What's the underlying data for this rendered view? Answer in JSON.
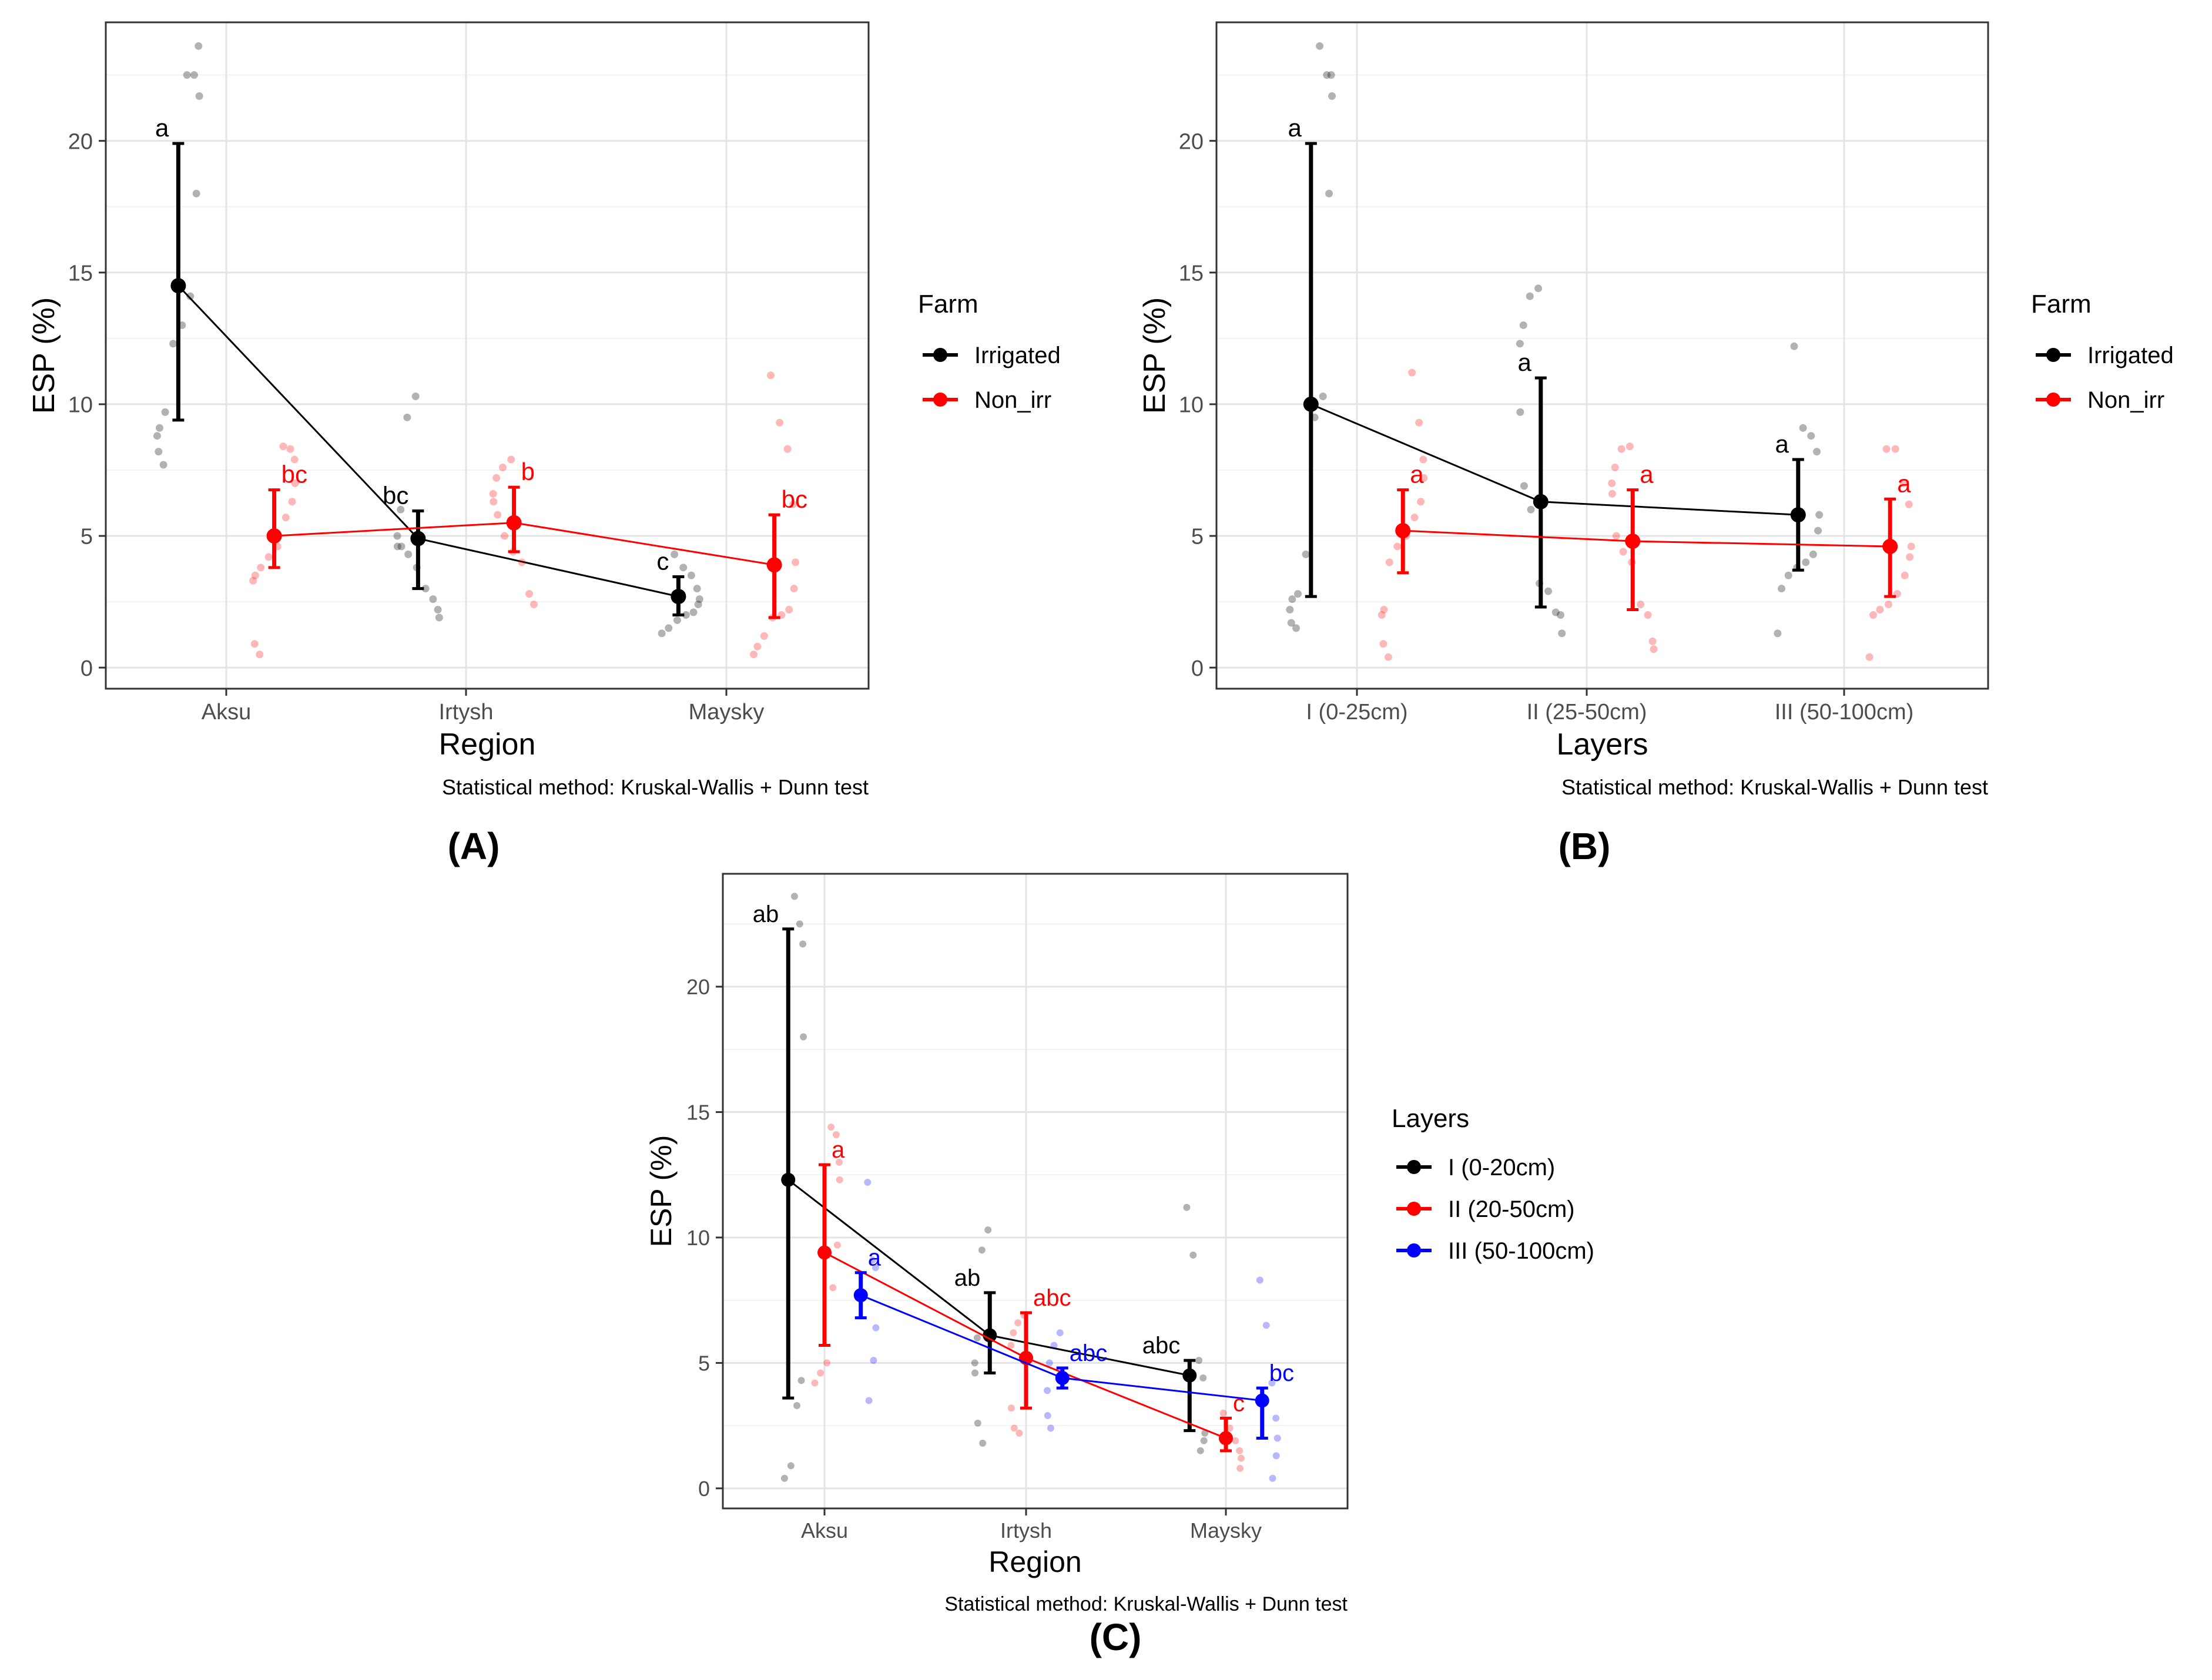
{
  "panel_captions": [
    "(A)",
    "(B)",
    "(C)"
  ],
  "chart_data": [
    {
      "panel": "A",
      "type": "scatter",
      "title": "",
      "xlabel": "Region",
      "ylabel": "ESP (%)",
      "caption": "Statistical method: Kruskal-Wallis + Dunn test",
      "categories": [
        "Aksu",
        "Irtysh",
        "Maysky"
      ],
      "ylim": [
        -0.8,
        24.5
      ],
      "yticks": [
        0,
        5,
        10,
        15,
        20
      ],
      "grid": true,
      "legend_title": "Farm",
      "series": [
        {
          "name": "Irrigated",
          "color": "#000000",
          "offset": -0.2,
          "mean": [
            14.5,
            4.9,
            2.7
          ],
          "lower": [
            9.4,
            3.0,
            2.0
          ],
          "upper": [
            19.9,
            5.95,
            3.45
          ],
          "letters": [
            "a",
            "bc",
            "c"
          ],
          "letter_side": "left",
          "points": [
            [
              22.5,
              22.5,
              23.6,
              21.7,
              18.0,
              14.1,
              13.0,
              12.3,
              9.7,
              9.1,
              8.8,
              8.2,
              7.7
            ],
            [
              10.3,
              9.5,
              6.0,
              5.0,
              4.6,
              4.6,
              4.3,
              3.8,
              3.0,
              2.6,
              2.2,
              1.9
            ],
            [
              4.3,
              3.8,
              3.5,
              3.0,
              2.6,
              2.4,
              2.1,
              2.0,
              1.8,
              1.5,
              1.3
            ]
          ]
        },
        {
          "name": "Non_irr",
          "color": "#ff0000",
          "offset": 0.2,
          "mean": [
            5.0,
            5.5,
            3.9
          ],
          "lower": [
            3.8,
            4.4,
            1.9
          ],
          "upper": [
            6.75,
            6.85,
            5.8
          ],
          "letters": [
            "bc",
            "b",
            "bc"
          ],
          "letter_side": "right",
          "points": [
            [
              8.4,
              8.3,
              7.9,
              7.0,
              6.3,
              5.7,
              4.6,
              4.2,
              3.8,
              3.5,
              3.3,
              0.9,
              0.5
            ],
            [
              7.9,
              7.6,
              7.2,
              6.6,
              6.3,
              5.8,
              5.0,
              4.4,
              4.0,
              2.8,
              2.4
            ],
            [
              11.1,
              9.3,
              8.3,
              6.2,
              4.0,
              3.0,
              2.2,
              2.0,
              1.9,
              1.2,
              0.8,
              0.5
            ]
          ]
        }
      ]
    },
    {
      "panel": "B",
      "type": "scatter",
      "title": "",
      "xlabel": "Layers",
      "ylabel": "ESP (%)",
      "caption": "Statistical method: Kruskal-Wallis + Dunn test",
      "categories": [
        "I (0-25cm)",
        "II (25-50cm)",
        "III (50-100cm)"
      ],
      "ylim": [
        -0.8,
        24.5
      ],
      "yticks": [
        0,
        5,
        10,
        15,
        20
      ],
      "grid": true,
      "legend_title": "Farm",
      "series": [
        {
          "name": "Irrigated",
          "color": "#000000",
          "offset": -0.2,
          "mean": [
            10.0,
            6.3,
            5.8
          ],
          "lower": [
            2.7,
            2.3,
            3.7
          ],
          "upper": [
            19.9,
            11.0,
            7.9
          ],
          "letters": [
            "a",
            "a",
            "a"
          ],
          "letter_side": "left",
          "points": [
            [
              23.6,
              22.5,
              22.5,
              21.7,
              18.0,
              10.3,
              9.5,
              4.3,
              2.8,
              2.6,
              2.2,
              1.7,
              1.5
            ],
            [
              14.4,
              14.1,
              13.0,
              12.3,
              9.7,
              6.9,
              6.0,
              3.2,
              2.9,
              2.1,
              2.0,
              1.3
            ],
            [
              12.2,
              9.1,
              8.8,
              8.2,
              5.8,
              5.2,
              4.3,
              4.0,
              3.8,
              3.5,
              3.0,
              1.3
            ]
          ]
        },
        {
          "name": "Non_irr",
          "color": "#ff0000",
          "offset": 0.2,
          "mean": [
            5.2,
            4.8,
            4.6
          ],
          "lower": [
            3.6,
            2.2,
            2.7
          ],
          "upper": [
            6.75,
            6.75,
            6.4
          ],
          "letters": [
            "a",
            "a",
            "a"
          ],
          "letter_side": "right",
          "points": [
            [
              11.2,
              9.3,
              7.9,
              7.2,
              6.3,
              5.7,
              5.0,
              4.6,
              4.0,
              2.2,
              2.0,
              0.9,
              0.4
            ],
            [
              8.4,
              8.3,
              7.6,
              7.0,
              6.6,
              5.0,
              4.4,
              4.0,
              2.4,
              2.0,
              1.0,
              0.7
            ],
            [
              8.3,
              8.3,
              7.0,
              6.2,
              4.6,
              4.2,
              3.5,
              2.8,
              2.4,
              2.2,
              2.0,
              0.4
            ]
          ]
        }
      ]
    },
    {
      "panel": "C",
      "type": "scatter",
      "title": "",
      "xlabel": "Region",
      "ylabel": "ESP (%)",
      "caption": "Statistical method: Kruskal-Wallis + Dunn test",
      "categories": [
        "Aksu",
        "Irtysh",
        "Maysky"
      ],
      "ylim": [
        -0.8,
        24.5
      ],
      "yticks": [
        0,
        5,
        10,
        15,
        20
      ],
      "grid": true,
      "legend_title": "Layers",
      "series": [
        {
          "name": "I (0-20cm)",
          "color": "#000000",
          "offset": -0.18,
          "mean": [
            12.3,
            6.1,
            4.5
          ],
          "lower": [
            3.6,
            4.6,
            2.3
          ],
          "upper": [
            22.3,
            7.8,
            5.1
          ],
          "letters": [
            "ab",
            "ab",
            "abc"
          ],
          "letter_side": "left",
          "points": [
            [
              23.6,
              22.5,
              21.7,
              18.0,
              4.3,
              3.3,
              0.9,
              0.4
            ],
            [
              10.3,
              9.5,
              6.0,
              5.0,
              4.6,
              2.6,
              1.8
            ],
            [
              11.2,
              9.3,
              5.1,
              4.4,
              2.2,
              1.9,
              1.5
            ]
          ]
        },
        {
          "name": "II (20-50cm)",
          "color": "#ff0000",
          "offset": 0,
          "mean": [
            9.4,
            5.2,
            2.0
          ],
          "lower": [
            5.7,
            3.2,
            1.5
          ],
          "upper": [
            12.9,
            7.0,
            2.8
          ],
          "letters": [
            "a",
            "abc",
            "c"
          ],
          "letter_side": "right",
          "points": [
            [
              14.4,
              14.1,
              13.0,
              12.3,
              9.7,
              8.0,
              5.0,
              4.6,
              4.2
            ],
            [
              6.9,
              6.6,
              6.2,
              5.7,
              3.2,
              2.4,
              2.2
            ],
            [
              3.0,
              2.4,
              1.9,
              1.5,
              1.2,
              0.8
            ]
          ]
        },
        {
          "name": "III (50-100cm)",
          "color": "#0000ff",
          "offset": 0.18,
          "mean": [
            7.7,
            4.4,
            3.5
          ],
          "lower": [
            6.8,
            4.0,
            2.0
          ],
          "upper": [
            8.6,
            4.8,
            4.0
          ],
          "letters": [
            "a",
            "abc",
            "bc"
          ],
          "letter_side": "right",
          "points": [
            [
              12.2,
              9.1,
              8.8,
              6.4,
              5.1,
              3.5
            ],
            [
              6.2,
              5.7,
              5.0,
              3.9,
              2.9,
              2.4
            ],
            [
              8.3,
              6.5,
              4.2,
              2.8,
              2.0,
              1.3,
              0.4
            ]
          ]
        }
      ]
    }
  ]
}
